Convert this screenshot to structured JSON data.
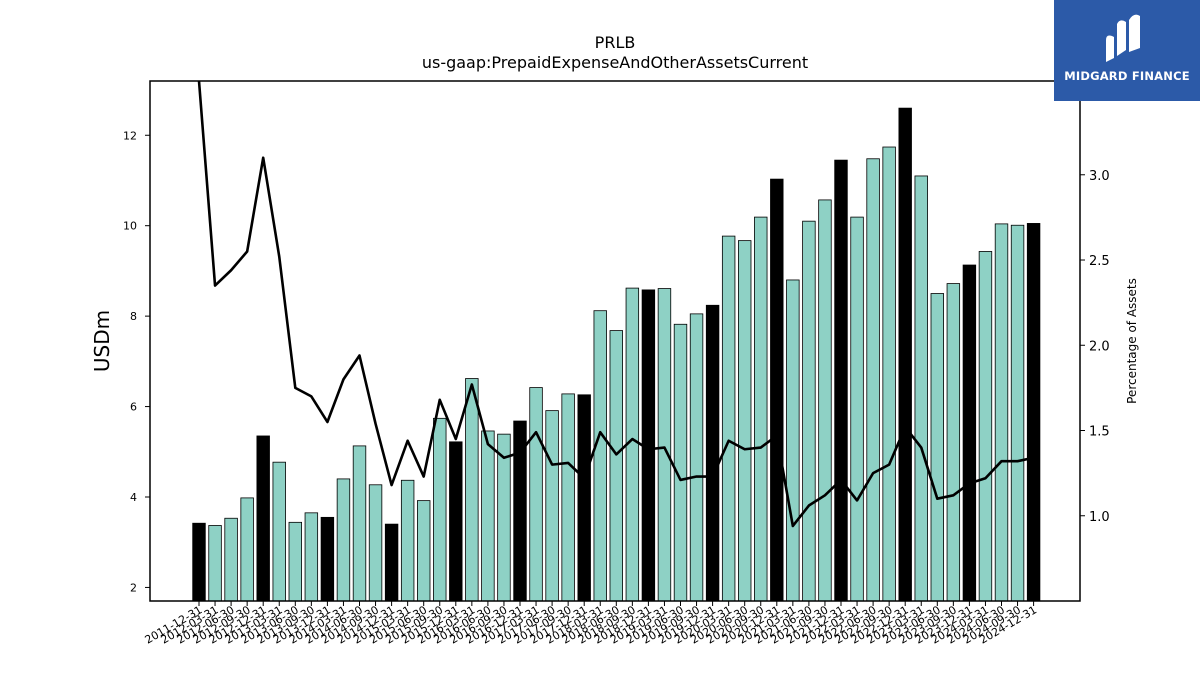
{
  "chart_data": {
    "type": "bar",
    "title": "PRLB",
    "subtitle": "us-gaap:PrepaidExpenseAndOtherAssetsCurrent",
    "ylabel": "USDm",
    "y2label": "Percentage of Assets",
    "ylim": [
      1.7,
      13.2
    ],
    "y2lim": [
      0.5,
      3.55
    ],
    "yticks": [
      2,
      4,
      6,
      8,
      10,
      12
    ],
    "y2ticks": [
      1.0,
      1.5,
      2.0,
      2.5,
      3.0
    ],
    "categories": [
      "2011-12-31",
      "2012-03-31",
      "2012-06-30",
      "2012-09-30",
      "2012-12-31",
      "2013-03-31",
      "2013-06-30",
      "2013-09-30",
      "2013-12-31",
      "2014-03-31",
      "2014-06-30",
      "2014-09-30",
      "2014-12-31",
      "2015-03-31",
      "2015-06-30",
      "2015-09-30",
      "2015-12-31",
      "2016-03-31",
      "2016-06-30",
      "2016-09-30",
      "2016-12-31",
      "2017-03-31",
      "2017-06-30",
      "2017-09-30",
      "2017-12-31",
      "2018-03-31",
      "2018-06-30",
      "2018-09-30",
      "2018-12-31",
      "2019-03-31",
      "2019-06-30",
      "2019-09-30",
      "2019-12-31",
      "2020-03-31",
      "2020-06-30",
      "2020-09-30",
      "2020-12-31",
      "2021-03-31",
      "2021-06-30",
      "2021-09-30",
      "2021-12-31",
      "2022-03-31",
      "2022-06-30",
      "2022-09-30",
      "2022-12-31",
      "2023-03-31",
      "2023-06-30",
      "2023-09-30",
      "2023-12-31",
      "2024-03-31",
      "2024-06-30",
      "2024-09-30",
      "2024-12-31"
    ],
    "series": [
      {
        "values": [
          3.42,
          3.37,
          3.53,
          3.98,
          5.35,
          4.77,
          3.44,
          3.65,
          3.55,
          4.4,
          5.13,
          4.27,
          3.4,
          4.37,
          3.92,
          5.74,
          5.22,
          6.62,
          5.46,
          5.39,
          5.68,
          6.42,
          5.91,
          6.28,
          6.26,
          8.12,
          7.68,
          8.62,
          8.58,
          8.61,
          7.82,
          8.05,
          8.24,
          9.77,
          9.67,
          10.19,
          11.03,
          8.8,
          10.1,
          10.57,
          11.45,
          10.19,
          11.48,
          11.74,
          12.6,
          11.1,
          8.5,
          8.72,
          9.13,
          9.43,
          10.04,
          10.01,
          10.05
        ],
        "highlight_color": "#000000",
        "color": "#8ed1c5"
      },
      {
        "values": [
          3.95,
          2.35,
          2.44,
          2.55,
          3.1,
          2.52,
          1.75,
          1.7,
          1.55,
          1.8,
          1.94,
          1.54,
          1.18,
          1.44,
          1.23,
          1.68,
          1.45,
          1.77,
          1.42,
          1.34,
          1.37,
          1.49,
          1.3,
          1.31,
          1.22,
          1.49,
          1.36,
          1.45,
          1.39,
          1.4,
          1.21,
          1.23,
          1.23,
          1.44,
          1.39,
          1.4,
          1.47,
          0.94,
          1.06,
          1.12,
          1.21,
          1.09,
          1.25,
          1.3,
          1.52,
          1.4,
          1.1,
          1.12,
          1.19,
          1.22,
          1.32,
          1.32,
          1.34
        ],
        "color": "#000000"
      }
    ],
    "highlight_every": "Q4 (12-31)"
  },
  "logo": {
    "text": "MIDGARD FINANCE",
    "background": "#2c5aa8"
  }
}
